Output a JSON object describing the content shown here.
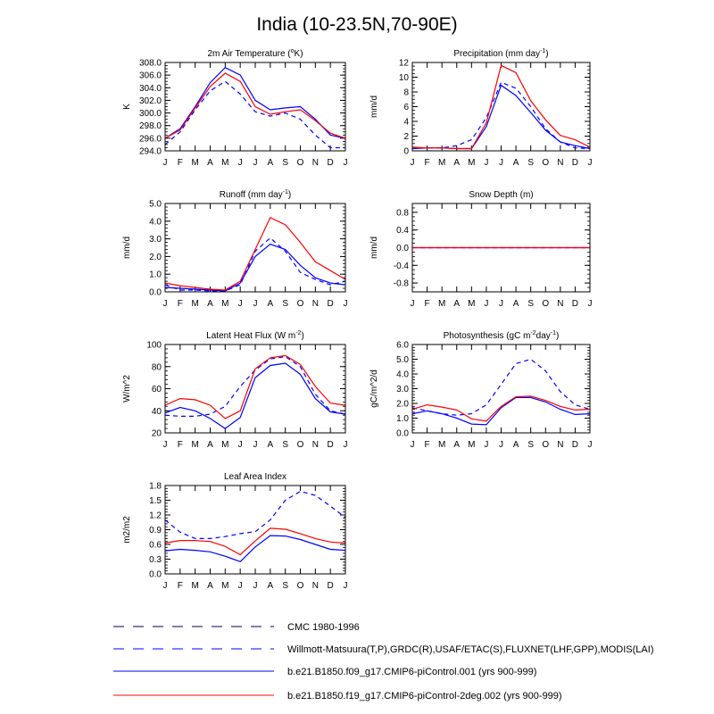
{
  "figure_title": "India (10-23.5N,70-90E)",
  "colors": {
    "obs": "#0000ff",
    "model1": "#0000ff",
    "model2": "#ff0000"
  },
  "legend": [
    {
      "label": "CMC 1980-1996",
      "style": "dash-long",
      "color": "#000060"
    },
    {
      "label": "Willmott-Matsuura(T,P),GRDC(R),USAF/ETAC(S),FLUXNET(LHF,GPP),MODIS(LAI)",
      "style": "dash",
      "color": "#0000ff"
    },
    {
      "label": "b.e21.B1850.f09_g17.CMIP6-piControl.001 (yrs 900-999)",
      "style": "solid",
      "color": "#0000ff"
    },
    {
      "label": "b.e21.B1850.f19_g17.CMIP6-piControl-2deg.002 (yrs 900-999)",
      "style": "solid",
      "color": "#ff0000"
    }
  ],
  "chart_data": [
    {
      "type": "line",
      "title": "2m Air Temperature (°K)",
      "title_parts": [
        "2m Air Temperature (",
        "o",
        "K)"
      ],
      "ylabel": "K",
      "ylim": [
        294,
        308
      ],
      "yticks": [
        "294.0",
        "296.0",
        "298.0",
        "300.0",
        "302.0",
        "304.0",
        "306.0",
        "308.0"
      ],
      "yminor": 0.5,
      "categories": [
        "J",
        "F",
        "M",
        "A",
        "M",
        "J",
        "J",
        "A",
        "S",
        "O",
        "N",
        "D",
        "J"
      ],
      "series": [
        {
          "name": "Observations",
          "values": [
            295.0,
            297.0,
            300.5,
            303.5,
            305.0,
            303.0,
            300.2,
            299.5,
            300.0,
            299.0,
            296.5,
            294.5,
            294.5
          ]
        },
        {
          "name": "b.e21.B1850.f09_g17.CMIP6-piControl.001",
          "values": [
            296.0,
            297.5,
            301.0,
            304.8,
            307.2,
            306.0,
            302.0,
            300.5,
            300.8,
            301.0,
            299.0,
            296.5,
            296.0
          ]
        },
        {
          "name": "b.e21.B1850.f19_g17.CMIP6-piControl-2deg.002",
          "values": [
            296.0,
            297.3,
            300.8,
            304.2,
            306.3,
            305.0,
            301.0,
            299.8,
            300.2,
            300.5,
            298.8,
            296.8,
            296.0
          ]
        }
      ]
    },
    {
      "type": "line",
      "title": "Precipitation (mm day-1)",
      "title_parts": [
        "Precipitation (mm day",
        "-1",
        ")"
      ],
      "ylabel": "mm/d",
      "ylim": [
        0,
        12
      ],
      "yticks": [
        "0",
        "2",
        "4",
        "6",
        "8",
        "10",
        "12"
      ],
      "yminor": 0.5,
      "categories": [
        "J",
        "F",
        "M",
        "A",
        "M",
        "J",
        "J",
        "A",
        "S",
        "O",
        "N",
        "D",
        "J"
      ],
      "series": [
        {
          "name": "Observations",
          "values": [
            0.3,
            0.4,
            0.4,
            0.7,
            1.5,
            4.5,
            9.3,
            8.5,
            6.0,
            3.0,
            1.2,
            0.4,
            0.3
          ]
        },
        {
          "name": "b.e21.B1850.f09_g17.CMIP6-piControl.001",
          "values": [
            0.3,
            0.4,
            0.4,
            0.3,
            0.3,
            3.3,
            8.9,
            7.5,
            5.2,
            2.8,
            1.2,
            0.7,
            0.3
          ]
        },
        {
          "name": "b.e21.B1850.f19_g17.CMIP6-piControl-2deg.002",
          "values": [
            0.5,
            0.4,
            0.4,
            0.3,
            0.3,
            3.8,
            11.6,
            10.6,
            6.8,
            4.2,
            2.1,
            1.5,
            0.5
          ]
        }
      ]
    },
    {
      "type": "line",
      "title": "Runoff (mm day-1)",
      "title_parts": [
        "Runoff (mm day",
        "-1",
        ")"
      ],
      "ylabel": "mm/d",
      "ylim": [
        0,
        5
      ],
      "yticks": [
        "0.0",
        "1.0",
        "2.0",
        "3.0",
        "4.0",
        "5.0"
      ],
      "yminor": 0.2,
      "categories": [
        "J",
        "F",
        "M",
        "A",
        "M",
        "J",
        "J",
        "A",
        "S",
        "O",
        "N",
        "D",
        "J"
      ],
      "series": [
        {
          "name": "Observations",
          "values": [
            0.4,
            0.1,
            0.1,
            0.05,
            0.05,
            0.4,
            2.3,
            3.05,
            2.3,
            1.1,
            0.7,
            0.4,
            0.6
          ]
        },
        {
          "name": "b.e21.B1850.f09_g17.CMIP6-piControl.001",
          "values": [
            0.25,
            0.2,
            0.15,
            0.1,
            0.05,
            0.5,
            2.0,
            2.7,
            2.4,
            1.5,
            0.8,
            0.5,
            0.4
          ]
        },
        {
          "name": "b.e21.B1850.f19_g17.CMIP6-piControl-2deg.002",
          "values": [
            0.5,
            0.35,
            0.25,
            0.15,
            0.1,
            0.6,
            2.4,
            4.2,
            3.8,
            2.8,
            1.7,
            1.2,
            0.7
          ]
        }
      ]
    },
    {
      "type": "line",
      "title": "Snow Depth (m)",
      "title_parts": [
        "Snow Depth (m)"
      ],
      "ylabel": "mm/d",
      "ylim": [
        -1,
        1
      ],
      "yticks": [
        "-0.8",
        "-0.4",
        "0.0",
        "0.4",
        "0.8"
      ],
      "ytick_values": [
        -0.8,
        -0.4,
        0.0,
        0.4,
        0.8
      ],
      "yminor": 0.1,
      "categories": [
        "J",
        "F",
        "M",
        "A",
        "M",
        "J",
        "J",
        "A",
        "S",
        "O",
        "N",
        "D",
        "J"
      ],
      "series": [
        {
          "name": "Observations",
          "values": [
            0,
            0,
            0,
            0,
            0,
            0,
            0,
            0,
            0,
            0,
            0,
            0,
            0
          ]
        },
        {
          "name": "b.e21.B1850.f09_g17.CMIP6-piControl.001",
          "values": [
            0,
            0,
            0,
            0,
            0,
            0,
            0,
            0,
            0,
            0,
            0,
            0,
            0
          ]
        },
        {
          "name": "b.e21.B1850.f19_g17.CMIP6-piControl-2deg.002",
          "values": [
            0,
            0,
            0,
            0,
            0,
            0,
            0,
            0,
            0,
            0,
            0,
            0,
            0
          ]
        }
      ]
    },
    {
      "type": "line",
      "title": "Latent Heat Flux (W m-2)",
      "title_parts": [
        "Latent Heat Flux (W m",
        "-2",
        ")"
      ],
      "ylabel": "W/m^2",
      "ylim": [
        20,
        100
      ],
      "yticks": [
        "20",
        "40",
        "60",
        "80",
        "100"
      ],
      "yminor": 4,
      "categories": [
        "J",
        "F",
        "M",
        "A",
        "M",
        "J",
        "J",
        "A",
        "S",
        "O",
        "N",
        "D",
        "J"
      ],
      "series": [
        {
          "name": "Observations",
          "values": [
            36,
            35,
            35,
            37,
            44,
            62,
            77,
            87,
            89,
            80,
            55,
            40,
            37
          ]
        },
        {
          "name": "b.e21.B1850.f09_g17.CMIP6-piControl.001",
          "values": [
            38,
            43,
            40,
            33,
            24,
            34,
            70,
            81,
            83,
            73,
            51,
            39,
            37
          ]
        },
        {
          "name": "b.e21.B1850.f19_g17.CMIP6-piControl-2deg.002",
          "values": [
            45,
            51,
            50,
            45,
            33,
            40,
            78,
            88,
            90,
            82,
            62,
            47,
            45
          ]
        }
      ]
    },
    {
      "type": "line",
      "title": "Photosynthesis (gC m-2day-1)",
      "title_parts": [
        "Photosynthesis (gC m",
        "-2",
        "day",
        "-1",
        ")"
      ],
      "ylabel": "gC/m^2/d",
      "ylim": [
        0,
        6
      ],
      "yticks": [
        "0.0",
        "1.0",
        "2.0",
        "3.0",
        "4.0",
        "5.0",
        "6.0"
      ],
      "yminor": 0.2,
      "categories": [
        "J",
        "F",
        "M",
        "A",
        "M",
        "J",
        "J",
        "A",
        "S",
        "O",
        "N",
        "D",
        "J"
      ],
      "series": [
        {
          "name": "Observations",
          "values": [
            1.7,
            1.5,
            1.3,
            1.2,
            1.3,
            1.9,
            3.3,
            4.7,
            5.0,
            4.2,
            2.8,
            1.9,
            1.6
          ]
        },
        {
          "name": "b.e21.B1850.f09_g17.CMIP6-piControl.001",
          "values": [
            1.3,
            1.5,
            1.3,
            1.0,
            0.6,
            0.55,
            1.7,
            2.4,
            2.4,
            2.1,
            1.6,
            1.25,
            1.3
          ]
        },
        {
          "name": "b.e21.B1850.f19_g17.CMIP6-piControl-2deg.002",
          "values": [
            1.6,
            1.9,
            1.75,
            1.55,
            0.95,
            0.8,
            1.8,
            2.45,
            2.5,
            2.2,
            1.8,
            1.55,
            1.6
          ]
        }
      ]
    },
    {
      "type": "line",
      "title": "Leaf Area Index",
      "title_parts": [
        "Leaf Area Index"
      ],
      "ylabel": "m2/m2",
      "ylim": [
        0,
        1.8
      ],
      "yticks": [
        "0.0",
        "0.3",
        "0.6",
        "0.9",
        "1.2",
        "1.5",
        "1.8"
      ],
      "yminor": 0.06,
      "categories": [
        "J",
        "F",
        "M",
        "A",
        "M",
        "J",
        "J",
        "A",
        "S",
        "O",
        "N",
        "D",
        "J"
      ],
      "series": [
        {
          "name": "Observations",
          "values": [
            1.1,
            0.85,
            0.72,
            0.72,
            0.76,
            0.82,
            0.86,
            1.1,
            1.5,
            1.68,
            1.6,
            1.38,
            1.15
          ]
        },
        {
          "name": "b.e21.B1850.f09_g17.CMIP6-piControl.001",
          "values": [
            0.47,
            0.5,
            0.48,
            0.45,
            0.36,
            0.25,
            0.55,
            0.78,
            0.77,
            0.7,
            0.6,
            0.5,
            0.48
          ]
        },
        {
          "name": "b.e21.B1850.f19_g17.CMIP6-piControl-2deg.002",
          "values": [
            0.63,
            0.68,
            0.68,
            0.66,
            0.56,
            0.39,
            0.67,
            0.93,
            0.91,
            0.82,
            0.72,
            0.65,
            0.63
          ]
        }
      ]
    }
  ]
}
